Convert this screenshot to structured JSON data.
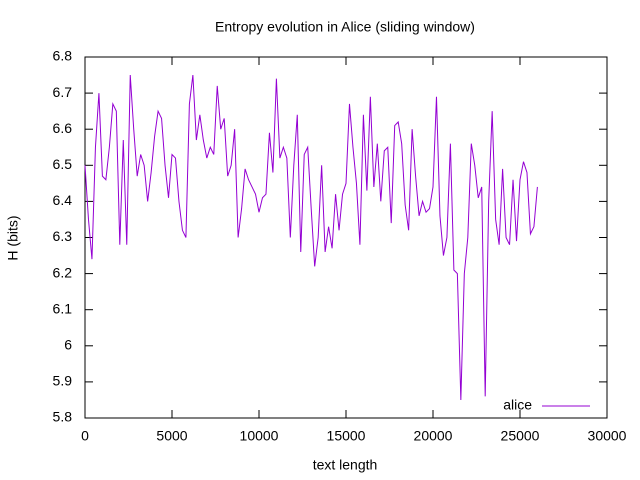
{
  "chart_data": {
    "type": "line",
    "title": "Entropy evolution in Alice (sliding window)",
    "x_label": "text length",
    "y_label": "H (bits)",
    "x": [
      0,
      200,
      400,
      600,
      800,
      1000,
      1200,
      1400,
      1600,
      1800,
      2000,
      2200,
      2400,
      2600,
      2800,
      3000,
      3200,
      3400,
      3600,
      3800,
      4000,
      4200,
      4400,
      4600,
      4800,
      5000,
      5200,
      5400,
      5600,
      5800,
      6000,
      6200,
      6400,
      6600,
      6800,
      7000,
      7200,
      7400,
      7600,
      7800,
      8000,
      8200,
      8400,
      8600,
      8800,
      9000,
      9200,
      9400,
      9600,
      9800,
      10000,
      10200,
      10400,
      10600,
      10800,
      11000,
      11200,
      11400,
      11600,
      11800,
      12000,
      12200,
      12400,
      12600,
      12800,
      13000,
      13200,
      13400,
      13600,
      13800,
      14000,
      14200,
      14400,
      14600,
      14800,
      15000,
      15200,
      15400,
      15600,
      15800,
      16000,
      16200,
      16400,
      16600,
      16800,
      17000,
      17200,
      17400,
      17600,
      17800,
      18000,
      18200,
      18400,
      18600,
      18800,
      19000,
      19200,
      19400,
      19600,
      19800,
      20000,
      20200,
      20400,
      20600,
      20800,
      21000,
      21200,
      21400,
      21600,
      21800,
      22000,
      22200,
      22400,
      22600,
      22800,
      23000,
      23200,
      23400,
      23600,
      23800,
      24000,
      24200,
      24400,
      24600,
      24800,
      25000,
      25200,
      25400,
      25600,
      25800,
      26000
    ],
    "series": [
      {
        "name": "alice",
        "color": "#9400d3",
        "values": [
          6.5,
          6.35,
          6.24,
          6.55,
          6.7,
          6.47,
          6.46,
          6.55,
          6.67,
          6.65,
          6.28,
          6.57,
          6.28,
          6.75,
          6.6,
          6.47,
          6.53,
          6.5,
          6.4,
          6.48,
          6.58,
          6.65,
          6.63,
          6.5,
          6.41,
          6.53,
          6.52,
          6.4,
          6.32,
          6.3,
          6.67,
          6.75,
          6.57,
          6.64,
          6.57,
          6.52,
          6.55,
          6.53,
          6.72,
          6.6,
          6.63,
          6.47,
          6.5,
          6.6,
          6.3,
          6.38,
          6.49,
          6.46,
          6.44,
          6.42,
          6.37,
          6.41,
          6.42,
          6.59,
          6.48,
          6.74,
          6.52,
          6.55,
          6.52,
          6.3,
          6.5,
          6.64,
          6.26,
          6.53,
          6.55,
          6.38,
          6.22,
          6.3,
          6.5,
          6.26,
          6.33,
          6.27,
          6.42,
          6.32,
          6.42,
          6.45,
          6.67,
          6.55,
          6.45,
          6.28,
          6.64,
          6.43,
          6.69,
          6.44,
          6.56,
          6.4,
          6.54,
          6.55,
          6.34,
          6.61,
          6.62,
          6.56,
          6.39,
          6.32,
          6.6,
          6.47,
          6.36,
          6.4,
          6.37,
          6.38,
          6.44,
          6.69,
          6.36,
          6.25,
          6.3,
          6.56,
          6.21,
          6.2,
          5.85,
          6.2,
          6.3,
          6.56,
          6.5,
          6.41,
          6.44,
          5.86,
          6.4,
          6.65,
          6.35,
          6.28,
          6.49,
          6.3,
          6.28,
          6.46,
          6.29,
          6.46,
          6.51,
          6.48,
          6.31,
          6.33,
          6.44
        ]
      }
    ],
    "xlim": [
      0,
      30000
    ],
    "xticks": [
      0,
      5000,
      10000,
      15000,
      20000,
      25000,
      30000
    ],
    "ylim": [
      5.8,
      6.8
    ],
    "yticks": [
      5.8,
      5.9,
      6,
      6.1,
      6.2,
      6.3,
      6.4,
      6.5,
      6.6,
      6.7,
      6.8
    ],
    "legend": "bottom-right"
  }
}
